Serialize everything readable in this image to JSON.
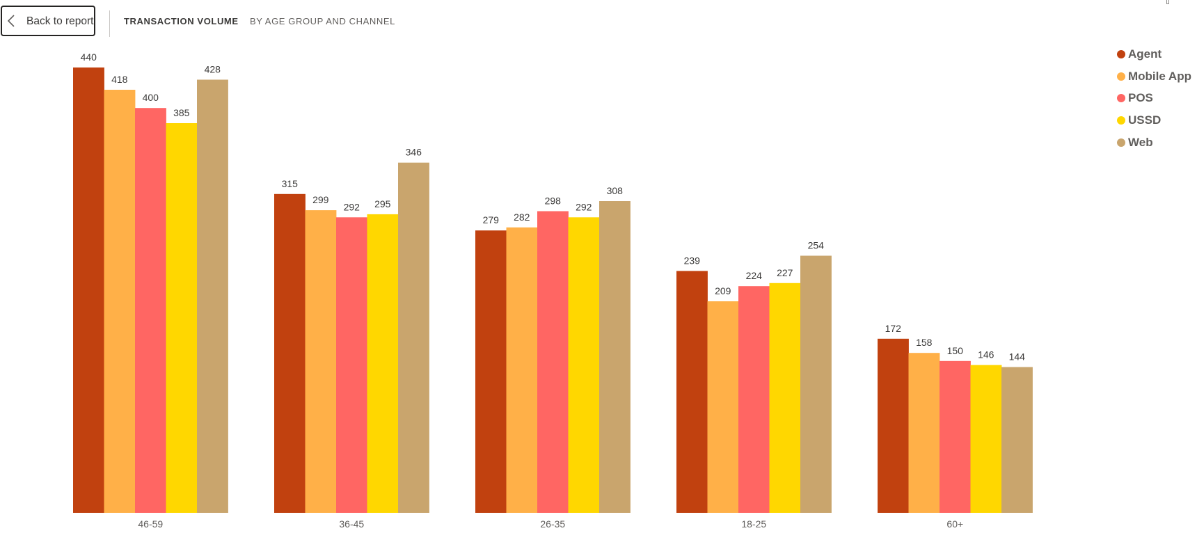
{
  "header": {
    "back_label": "Back to report",
    "title": "TRANSACTION VOLUME",
    "subtitle": "BY AGE GROUP AND CHANNEL"
  },
  "chart_data": {
    "type": "bar",
    "categories": [
      "46-59",
      "36-45",
      "26-35",
      "18-25",
      "60+"
    ],
    "series": [
      {
        "name": "Agent",
        "color": "#C1410F",
        "values": [
          440,
          315,
          279,
          239,
          172
        ]
      },
      {
        "name": "Mobile App",
        "color": "#FFB048",
        "values": [
          418,
          299,
          282,
          209,
          158
        ]
      },
      {
        "name": "POS",
        "color": "#FF6663",
        "values": [
          400,
          292,
          298,
          224,
          150
        ]
      },
      {
        "name": "USSD",
        "color": "#FFD700",
        "values": [
          385,
          295,
          292,
          227,
          146
        ]
      },
      {
        "name": "Web",
        "color": "#C9A56D",
        "values": [
          428,
          346,
          308,
          254,
          144
        ]
      }
    ],
    "ylim": [
      0,
      440
    ],
    "grid": false,
    "legend_position": "top-right"
  }
}
